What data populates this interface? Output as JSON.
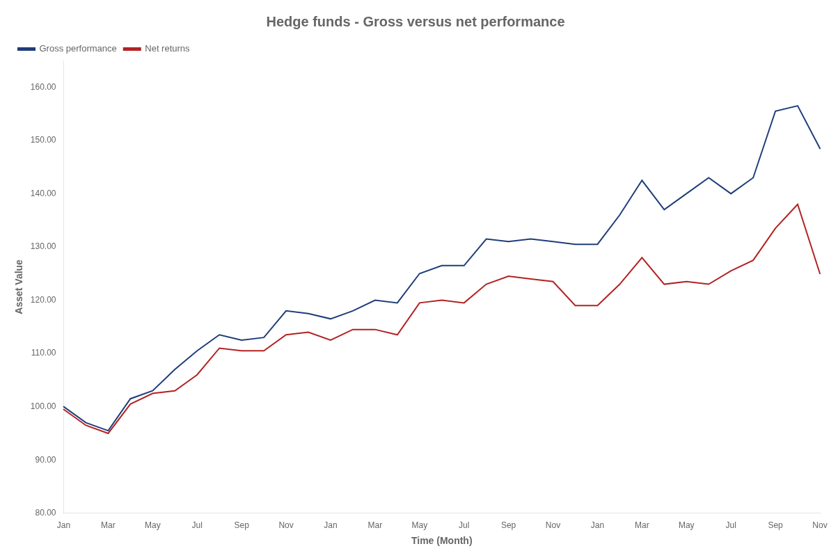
{
  "chart_data": {
    "type": "line",
    "title": "Hedge funds - Gross versus net performance",
    "xlabel": "Time (Month)",
    "ylabel": "Asset Value",
    "categories": [
      "Jan",
      null,
      "Mar",
      null,
      "May",
      null,
      "Jul",
      null,
      "Sep",
      null,
      "Nov",
      null,
      "Jan",
      null,
      "Mar",
      null,
      "May",
      null,
      "Jul",
      null,
      "Sep",
      null,
      "Nov",
      null,
      "Jan",
      null,
      "Mar",
      null,
      "May",
      null,
      "Jul",
      null,
      "Sep",
      null,
      "Nov"
    ],
    "series": [
      {
        "name": "Gross performance",
        "color": "#1f3d7a",
        "values": [
          100.0,
          97.0,
          95.5,
          101.5,
          103.0,
          107.0,
          110.5,
          113.5,
          112.5,
          113.0,
          118.0,
          117.5,
          116.5,
          118.0,
          120.0,
          119.5,
          125.0,
          126.5,
          126.5,
          131.5,
          131.0,
          131.5,
          131.0,
          130.5,
          130.5,
          136.0,
          142.5,
          137.0,
          140.0,
          143.0,
          140.0,
          143.0,
          155.5,
          156.5,
          148.5
        ]
      },
      {
        "name": "Net returns",
        "color": "#b22222",
        "values": [
          99.5,
          96.5,
          95.0,
          100.5,
          102.5,
          103.0,
          106.0,
          111.0,
          110.5,
          110.5,
          113.5,
          114.0,
          112.5,
          114.5,
          114.5,
          113.5,
          119.5,
          120.0,
          119.5,
          123.0,
          124.5,
          124.0,
          123.5,
          119.0,
          119.0,
          123.0,
          128.0,
          123.0,
          123.5,
          123.0,
          125.5,
          127.5,
          133.5,
          138.0,
          125.0
        ]
      }
    ],
    "ylim": [
      80.0,
      165.0
    ],
    "yticks": [
      {
        "value": 80.0,
        "label": "80.00"
      },
      {
        "value": 90.0,
        "label": "90.00"
      },
      {
        "value": 100.0,
        "label": "100.00"
      },
      {
        "value": 110.0,
        "label": "110.00"
      },
      {
        "value": 120.0,
        "label": "120.00"
      },
      {
        "value": 130.0,
        "label": "130.00"
      },
      {
        "value": 140.0,
        "label": "140.00"
      },
      {
        "value": 150.0,
        "label": "150.00"
      },
      {
        "value": 160.0,
        "label": "160.00"
      }
    ],
    "grid": false,
    "legend": "upper left"
  }
}
